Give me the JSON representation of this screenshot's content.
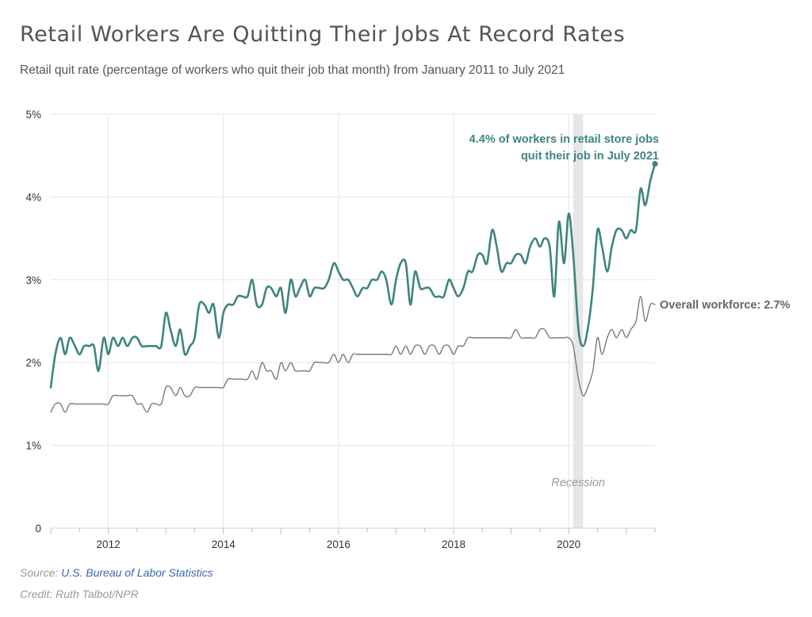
{
  "header": {
    "title": "Retail Workers Are Quitting Their Jobs At Record Rates",
    "subtitle": "Retail quit rate (percentage of workers who quit their job that month) from January 2011 to July 2021"
  },
  "footer": {
    "source_label": "Source:",
    "source_link": "U.S. Bureau of Labor Statistics",
    "credit": "Credit: Ruth Talbot/NPR"
  },
  "colors": {
    "retail": "#3e857e",
    "overall": "#7a7a7a",
    "recession": "#e6e6e6",
    "grid": "#e5e5e5",
    "axis_text": "#333333",
    "link": "#3b67b3"
  },
  "chart_data": {
    "type": "line",
    "title": "Retail Workers Are Quitting Their Jobs At Record Rates",
    "xlabel": "",
    "ylabel": "",
    "xlim": [
      2011.0,
      2021.5
    ],
    "ylim": [
      0,
      5
    ],
    "x_ticks": [
      2012,
      2014,
      2016,
      2018,
      2020
    ],
    "x_tick_labels": [
      "2012",
      "2014",
      "2016",
      "2018",
      "2020"
    ],
    "y_ticks": [
      0,
      1,
      2,
      3,
      4,
      5
    ],
    "y_tick_labels": [
      "0",
      "1%",
      "2%",
      "3%",
      "4%",
      "5%"
    ],
    "grid": true,
    "shaded_regions": [
      {
        "label": "Recession",
        "x_start": 2020.08,
        "x_end": 2020.25
      }
    ],
    "annotations": [
      {
        "text_lines": [
          "4.4% of workers in retail store jobs",
          "quit their job in July 2021"
        ],
        "series": "retail",
        "x": 2021.5,
        "y": 4.4
      },
      {
        "text": "Overall workforce: 2.7%",
        "series": "overall",
        "x": 2021.5,
        "y": 2.7
      }
    ],
    "series": [
      {
        "id": "retail",
        "points": [
          [
            2011.0,
            1.7
          ],
          [
            2011.08,
            2.1
          ],
          [
            2011.17,
            2.3
          ],
          [
            2011.25,
            2.1
          ],
          [
            2011.33,
            2.3
          ],
          [
            2011.42,
            2.2
          ],
          [
            2011.5,
            2.1
          ],
          [
            2011.58,
            2.2
          ],
          [
            2011.67,
            2.2
          ],
          [
            2011.75,
            2.2
          ],
          [
            2011.83,
            1.9
          ],
          [
            2011.92,
            2.3
          ],
          [
            2012.0,
            2.1
          ],
          [
            2012.08,
            2.3
          ],
          [
            2012.17,
            2.2
          ],
          [
            2012.25,
            2.3
          ],
          [
            2012.33,
            2.2
          ],
          [
            2012.42,
            2.3
          ],
          [
            2012.5,
            2.3
          ],
          [
            2012.58,
            2.2
          ],
          [
            2012.67,
            2.2
          ],
          [
            2012.75,
            2.2
          ],
          [
            2012.83,
            2.2
          ],
          [
            2012.92,
            2.2
          ],
          [
            2013.0,
            2.6
          ],
          [
            2013.08,
            2.4
          ],
          [
            2013.17,
            2.2
          ],
          [
            2013.25,
            2.4
          ],
          [
            2013.33,
            2.1
          ],
          [
            2013.42,
            2.2
          ],
          [
            2013.5,
            2.3
          ],
          [
            2013.58,
            2.7
          ],
          [
            2013.67,
            2.7
          ],
          [
            2013.75,
            2.6
          ],
          [
            2013.83,
            2.7
          ],
          [
            2013.92,
            2.3
          ],
          [
            2014.0,
            2.6
          ],
          [
            2014.08,
            2.7
          ],
          [
            2014.17,
            2.7
          ],
          [
            2014.25,
            2.8
          ],
          [
            2014.33,
            2.8
          ],
          [
            2014.42,
            2.8
          ],
          [
            2014.5,
            3.0
          ],
          [
            2014.58,
            2.7
          ],
          [
            2014.67,
            2.7
          ],
          [
            2014.75,
            2.9
          ],
          [
            2014.83,
            2.9
          ],
          [
            2014.92,
            2.8
          ],
          [
            2015.0,
            2.9
          ],
          [
            2015.08,
            2.6
          ],
          [
            2015.17,
            3.0
          ],
          [
            2015.25,
            2.8
          ],
          [
            2015.33,
            2.9
          ],
          [
            2015.42,
            3.0
          ],
          [
            2015.5,
            2.8
          ],
          [
            2015.58,
            2.9
          ],
          [
            2015.67,
            2.9
          ],
          [
            2015.75,
            2.9
          ],
          [
            2015.83,
            3.0
          ],
          [
            2015.92,
            3.2
          ],
          [
            2016.0,
            3.1
          ],
          [
            2016.08,
            3.0
          ],
          [
            2016.17,
            3.0
          ],
          [
            2016.25,
            2.9
          ],
          [
            2016.33,
            2.8
          ],
          [
            2016.42,
            2.9
          ],
          [
            2016.5,
            2.9
          ],
          [
            2016.58,
            3.0
          ],
          [
            2016.67,
            3.0
          ],
          [
            2016.75,
            3.1
          ],
          [
            2016.83,
            3.0
          ],
          [
            2016.92,
            2.7
          ],
          [
            2017.0,
            3.0
          ],
          [
            2017.08,
            3.2
          ],
          [
            2017.17,
            3.2
          ],
          [
            2017.25,
            2.7
          ],
          [
            2017.33,
            3.1
          ],
          [
            2017.42,
            2.9
          ],
          [
            2017.5,
            2.9
          ],
          [
            2017.58,
            2.9
          ],
          [
            2017.67,
            2.8
          ],
          [
            2017.75,
            2.8
          ],
          [
            2017.83,
            2.8
          ],
          [
            2017.92,
            3.0
          ],
          [
            2018.0,
            2.9
          ],
          [
            2018.08,
            2.8
          ],
          [
            2018.17,
            2.9
          ],
          [
            2018.25,
            3.1
          ],
          [
            2018.33,
            3.1
          ],
          [
            2018.42,
            3.3
          ],
          [
            2018.5,
            3.3
          ],
          [
            2018.58,
            3.2
          ],
          [
            2018.67,
            3.6
          ],
          [
            2018.75,
            3.4
          ],
          [
            2018.83,
            3.1
          ],
          [
            2018.92,
            3.2
          ],
          [
            2019.0,
            3.2
          ],
          [
            2019.08,
            3.3
          ],
          [
            2019.17,
            3.3
          ],
          [
            2019.25,
            3.2
          ],
          [
            2019.33,
            3.4
          ],
          [
            2019.42,
            3.5
          ],
          [
            2019.5,
            3.4
          ],
          [
            2019.58,
            3.5
          ],
          [
            2019.67,
            3.4
          ],
          [
            2019.75,
            2.8
          ],
          [
            2019.83,
            3.7
          ],
          [
            2019.92,
            3.2
          ],
          [
            2020.0,
            3.8
          ],
          [
            2020.08,
            3.3
          ],
          [
            2020.17,
            2.4
          ],
          [
            2020.25,
            2.2
          ],
          [
            2020.33,
            2.4
          ],
          [
            2020.42,
            2.9
          ],
          [
            2020.5,
            3.6
          ],
          [
            2020.58,
            3.4
          ],
          [
            2020.67,
            3.1
          ],
          [
            2020.75,
            3.4
          ],
          [
            2020.83,
            3.6
          ],
          [
            2020.92,
            3.6
          ],
          [
            2021.0,
            3.5
          ],
          [
            2021.08,
            3.6
          ],
          [
            2021.17,
            3.6
          ],
          [
            2021.25,
            4.1
          ],
          [
            2021.33,
            3.9
          ],
          [
            2021.42,
            4.2
          ],
          [
            2021.5,
            4.4
          ]
        ]
      },
      {
        "id": "overall",
        "points": [
          [
            2011.0,
            1.4
          ],
          [
            2011.08,
            1.5
          ],
          [
            2011.17,
            1.5
          ],
          [
            2011.25,
            1.4
          ],
          [
            2011.33,
            1.5
          ],
          [
            2011.42,
            1.5
          ],
          [
            2011.5,
            1.5
          ],
          [
            2011.58,
            1.5
          ],
          [
            2011.67,
            1.5
          ],
          [
            2011.75,
            1.5
          ],
          [
            2011.83,
            1.5
          ],
          [
            2011.92,
            1.5
          ],
          [
            2012.0,
            1.5
          ],
          [
            2012.08,
            1.6
          ],
          [
            2012.17,
            1.6
          ],
          [
            2012.25,
            1.6
          ],
          [
            2012.33,
            1.6
          ],
          [
            2012.42,
            1.6
          ],
          [
            2012.5,
            1.5
          ],
          [
            2012.58,
            1.5
          ],
          [
            2012.67,
            1.4
          ],
          [
            2012.75,
            1.5
          ],
          [
            2012.83,
            1.5
          ],
          [
            2012.92,
            1.5
          ],
          [
            2013.0,
            1.7
          ],
          [
            2013.08,
            1.7
          ],
          [
            2013.17,
            1.6
          ],
          [
            2013.25,
            1.7
          ],
          [
            2013.33,
            1.6
          ],
          [
            2013.42,
            1.6
          ],
          [
            2013.5,
            1.7
          ],
          [
            2013.58,
            1.7
          ],
          [
            2013.67,
            1.7
          ],
          [
            2013.75,
            1.7
          ],
          [
            2013.83,
            1.7
          ],
          [
            2013.92,
            1.7
          ],
          [
            2014.0,
            1.7
          ],
          [
            2014.08,
            1.8
          ],
          [
            2014.17,
            1.8
          ],
          [
            2014.25,
            1.8
          ],
          [
            2014.33,
            1.8
          ],
          [
            2014.42,
            1.8
          ],
          [
            2014.5,
            1.9
          ],
          [
            2014.58,
            1.8
          ],
          [
            2014.67,
            2.0
          ],
          [
            2014.75,
            1.9
          ],
          [
            2014.83,
            1.9
          ],
          [
            2014.92,
            1.8
          ],
          [
            2015.0,
            2.0
          ],
          [
            2015.08,
            1.9
          ],
          [
            2015.17,
            2.0
          ],
          [
            2015.25,
            1.9
          ],
          [
            2015.33,
            1.9
          ],
          [
            2015.42,
            1.9
          ],
          [
            2015.5,
            1.9
          ],
          [
            2015.58,
            2.0
          ],
          [
            2015.67,
            2.0
          ],
          [
            2015.75,
            2.0
          ],
          [
            2015.83,
            2.0
          ],
          [
            2015.92,
            2.1
          ],
          [
            2016.0,
            2.0
          ],
          [
            2016.08,
            2.1
          ],
          [
            2016.17,
            2.0
          ],
          [
            2016.25,
            2.1
          ],
          [
            2016.33,
            2.1
          ],
          [
            2016.42,
            2.1
          ],
          [
            2016.5,
            2.1
          ],
          [
            2016.58,
            2.1
          ],
          [
            2016.67,
            2.1
          ],
          [
            2016.75,
            2.1
          ],
          [
            2016.83,
            2.1
          ],
          [
            2016.92,
            2.1
          ],
          [
            2017.0,
            2.2
          ],
          [
            2017.08,
            2.1
          ],
          [
            2017.17,
            2.2
          ],
          [
            2017.25,
            2.1
          ],
          [
            2017.33,
            2.2
          ],
          [
            2017.42,
            2.2
          ],
          [
            2017.5,
            2.1
          ],
          [
            2017.58,
            2.2
          ],
          [
            2017.67,
            2.2
          ],
          [
            2017.75,
            2.1
          ],
          [
            2017.83,
            2.2
          ],
          [
            2017.92,
            2.2
          ],
          [
            2018.0,
            2.1
          ],
          [
            2018.08,
            2.2
          ],
          [
            2018.17,
            2.2
          ],
          [
            2018.25,
            2.3
          ],
          [
            2018.33,
            2.3
          ],
          [
            2018.42,
            2.3
          ],
          [
            2018.5,
            2.3
          ],
          [
            2018.58,
            2.3
          ],
          [
            2018.67,
            2.3
          ],
          [
            2018.75,
            2.3
          ],
          [
            2018.83,
            2.3
          ],
          [
            2018.92,
            2.3
          ],
          [
            2019.0,
            2.3
          ],
          [
            2019.08,
            2.4
          ],
          [
            2019.17,
            2.3
          ],
          [
            2019.25,
            2.3
          ],
          [
            2019.33,
            2.3
          ],
          [
            2019.42,
            2.3
          ],
          [
            2019.5,
            2.4
          ],
          [
            2019.58,
            2.4
          ],
          [
            2019.67,
            2.3
          ],
          [
            2019.75,
            2.3
          ],
          [
            2019.83,
            2.3
          ],
          [
            2019.92,
            2.3
          ],
          [
            2020.0,
            2.3
          ],
          [
            2020.08,
            2.2
          ],
          [
            2020.17,
            1.8
          ],
          [
            2020.25,
            1.6
          ],
          [
            2020.33,
            1.7
          ],
          [
            2020.42,
            1.9
          ],
          [
            2020.5,
            2.3
          ],
          [
            2020.58,
            2.1
          ],
          [
            2020.67,
            2.3
          ],
          [
            2020.75,
            2.4
          ],
          [
            2020.83,
            2.3
          ],
          [
            2020.92,
            2.4
          ],
          [
            2021.0,
            2.3
          ],
          [
            2021.08,
            2.4
          ],
          [
            2021.17,
            2.5
          ],
          [
            2021.25,
            2.8
          ],
          [
            2021.33,
            2.5
          ],
          [
            2021.42,
            2.7
          ],
          [
            2021.5,
            2.7
          ]
        ]
      }
    ]
  }
}
